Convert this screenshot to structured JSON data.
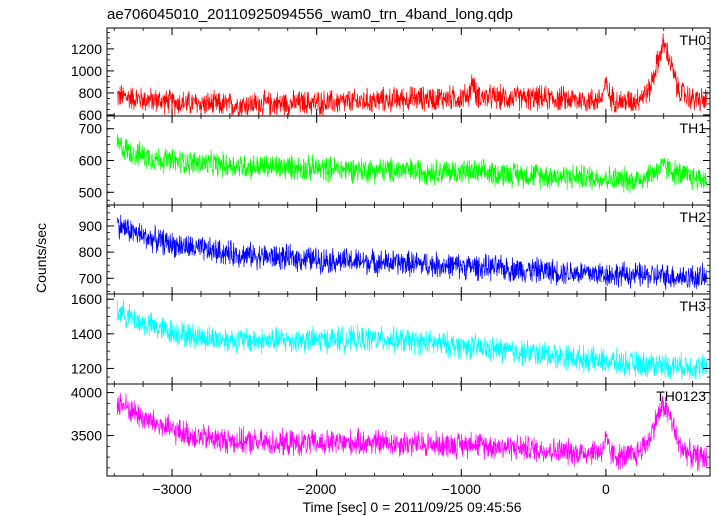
{
  "chart_data": {
    "type": "line",
    "title": "ae706045010_20110925094556_wam0_trn_4band_long.qdp",
    "xlabel": "Time [sec] 0 = 2011/09/25 09:45:56",
    "ylabel": "Counts/sec",
    "xlim": [
      -3450,
      720
    ],
    "xticks": [
      -3000,
      -2000,
      -1000,
      0
    ],
    "grid": false,
    "panels": [
      {
        "name": "TH0",
        "color": "#ff0000",
        "ylim": [
          590,
          1390
        ],
        "yticks": [
          600,
          800,
          1000,
          1200
        ],
        "series": {
          "x": [
            -3380,
            -3300,
            -3200,
            -3100,
            -3000,
            -2800,
            -2600,
            -2400,
            -2200,
            -2000,
            -1800,
            -1600,
            -1400,
            -1200,
            -1000,
            -950,
            -920,
            -900,
            -850,
            -700,
            -500,
            -300,
            -100,
            -30,
            0,
            30,
            100,
            200,
            300,
            350,
            400,
            450,
            500,
            600,
            700
          ],
          "values": [
            770,
            760,
            740,
            730,
            715,
            700,
            690,
            700,
            705,
            710,
            715,
            730,
            745,
            750,
            755,
            780,
            910,
            790,
            760,
            755,
            750,
            745,
            730,
            750,
            880,
            760,
            720,
            730,
            820,
            1050,
            1250,
            1060,
            820,
            740,
            730
          ]
        }
      },
      {
        "name": "TH1",
        "color": "#00ff00",
        "ylim": [
          460,
          740
        ],
        "yticks": [
          500,
          600,
          700
        ],
        "series": {
          "x": [
            -3380,
            -3300,
            -3200,
            -3100,
            -3000,
            -2800,
            -2600,
            -2400,
            -2200,
            -2000,
            -1800,
            -1600,
            -1400,
            -1200,
            -1000,
            -800,
            -600,
            -400,
            -200,
            0,
            100,
            200,
            300,
            400,
            500,
            600,
            700
          ],
          "values": [
            650,
            630,
            615,
            605,
            598,
            590,
            585,
            580,
            578,
            575,
            572,
            570,
            568,
            566,
            564,
            560,
            556,
            552,
            548,
            545,
            540,
            538,
            555,
            580,
            558,
            545,
            540
          ]
        }
      },
      {
        "name": "TH2",
        "color": "#0000ff",
        "ylim": [
          640,
          980
        ],
        "yticks": [
          700,
          800,
          900
        ],
        "series": {
          "x": [
            -3380,
            -3300,
            -3200,
            -3000,
            -2800,
            -2600,
            -2400,
            -2200,
            -2000,
            -1800,
            -1600,
            -1400,
            -1200,
            -1000,
            -800,
            -600,
            -400,
            -200,
            0,
            200,
            400,
            600,
            700
          ],
          "values": [
            905,
            885,
            860,
            830,
            810,
            795,
            785,
            778,
            772,
            766,
            762,
            758,
            752,
            746,
            740,
            734,
            728,
            722,
            716,
            712,
            708,
            705,
            702
          ]
        }
      },
      {
        "name": "TH3",
        "color": "#00ffff",
        "ylim": [
          1110,
          1630
        ],
        "yticks": [
          1200,
          1400,
          1600
        ],
        "series": {
          "x": [
            -3380,
            -3300,
            -3200,
            -3000,
            -2800,
            -2600,
            -2400,
            -2200,
            -2000,
            -1800,
            -1600,
            -1400,
            -1200,
            -1000,
            -800,
            -600,
            -400,
            -200,
            0,
            200,
            400,
            600,
            700
          ],
          "values": [
            1540,
            1500,
            1460,
            1410,
            1380,
            1365,
            1360,
            1362,
            1365,
            1368,
            1370,
            1360,
            1345,
            1330,
            1310,
            1295,
            1280,
            1260,
            1240,
            1225,
            1220,
            1210,
            1205
          ]
        }
      },
      {
        "name": "TH0123",
        "color": "#ff00ff",
        "ylim": [
          3030,
          4100
        ],
        "yticks": [
          3500,
          4000
        ],
        "series": {
          "x": [
            -3380,
            -3300,
            -3200,
            -3000,
            -2800,
            -2600,
            -2400,
            -2200,
            -2000,
            -1800,
            -1600,
            -1400,
            -1200,
            -1000,
            -950,
            -920,
            -900,
            -800,
            -600,
            -400,
            -200,
            -30,
            0,
            30,
            100,
            200,
            300,
            350,
            400,
            450,
            500,
            600,
            700
          ],
          "values": [
            3890,
            3820,
            3700,
            3560,
            3480,
            3440,
            3420,
            3410,
            3410,
            3415,
            3420,
            3410,
            3400,
            3390,
            3400,
            3460,
            3395,
            3380,
            3360,
            3330,
            3300,
            3320,
            3450,
            3300,
            3250,
            3270,
            3450,
            3700,
            3860,
            3700,
            3400,
            3260,
            3240
          ]
        }
      }
    ]
  }
}
